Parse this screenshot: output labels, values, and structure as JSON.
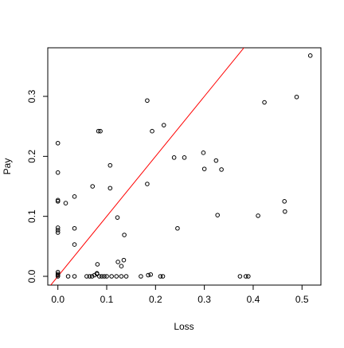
{
  "chart_data": {
    "type": "scatter",
    "xlabel": "Loss",
    "ylabel": "Pay",
    "x": [
      0,
      0,
      0,
      0,
      0,
      0,
      0,
      0,
      0,
      0,
      0,
      0.016,
      0.034,
      0.034,
      0.034,
      0.034,
      0.021,
      0.059,
      0.065,
      0.07,
      0.075,
      0.08,
      0.085,
      0.09,
      0.095,
      0.1,
      0.11,
      0.12,
      0.13,
      0.14,
      0.17,
      0.185,
      0.19,
      0.21,
      0.215,
      0.373,
      0.385,
      0.39,
      0.08,
      0.071,
      0.081,
      0.083,
      0.087,
      0.107,
      0.107,
      0.122,
      0.123,
      0.13,
      0.135,
      0.136,
      0.183,
      0.183,
      0.193,
      0.217,
      0.238,
      0.259,
      0.245,
      0.298,
      0.3,
      0.324,
      0.335,
      0.327,
      0.423,
      0.41,
      0.464,
      0.465,
      0.489,
      0.517
    ],
    "y": [
      0.222,
      0.173,
      0.127,
      0.125,
      0.081,
      0.077,
      0.073,
      0.007,
      0.004,
      0.002,
      0,
      0.122,
      0.133,
      0.08,
      0.053,
      0,
      0,
      0,
      0,
      0,
      0.002,
      0.004,
      0,
      0,
      0,
      0,
      0,
      0,
      0,
      0,
      0,
      0.002,
      0.003,
      0,
      0,
      0,
      0,
      0,
      0.005,
      0.15,
      0.02,
      0.242,
      0.242,
      0.185,
      0.147,
      0.098,
      0.024,
      0.017,
      0.027,
      0.069,
      0.293,
      0.154,
      0.242,
      0.252,
      0.198,
      0.198,
      0.08,
      0.206,
      0.179,
      0.193,
      0.178,
      0.102,
      0.29,
      0.101,
      0.125,
      0.108,
      0.299,
      0.368
    ],
    "color": "#000000",
    "reference_line": {
      "intercept": 0,
      "slope": 1,
      "color": "#ff0000"
    },
    "xlim": [
      -0.0207,
      0.5387
    ],
    "ylim": [
      -0.0146,
      0.381
    ],
    "xticks": [
      {
        "value": 0,
        "label": "0.0"
      },
      0.1,
      0.2,
      0.3,
      0.4,
      0.5
    ],
    "yticks": [
      {
        "value": 0,
        "label": "0.0"
      },
      0.1,
      0.2,
      0.3
    ]
  }
}
